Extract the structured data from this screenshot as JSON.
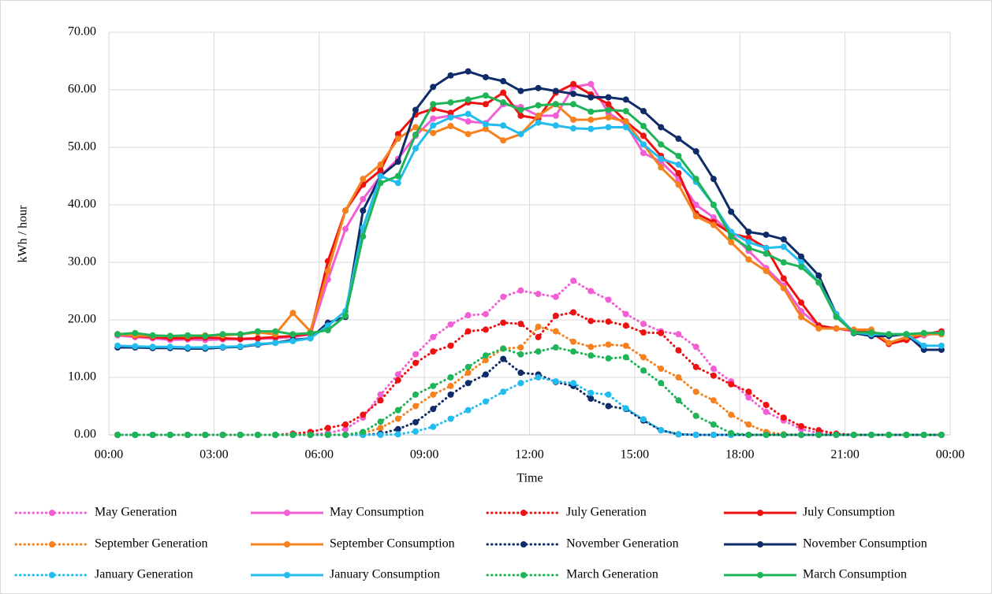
{
  "chart_data": {
    "type": "line",
    "x_label": "Time",
    "y_label": "kWh / hour",
    "xlim": [
      0,
      24
    ],
    "xticks": [
      {
        "value": 0,
        "label": "00:00"
      },
      {
        "value": 3,
        "label": "03:00"
      },
      {
        "value": 6,
        "label": "06:00"
      },
      {
        "value": 9,
        "label": "09:00"
      },
      {
        "value": 12,
        "label": "12:00"
      },
      {
        "value": 15,
        "label": "15:00"
      },
      {
        "value": 18,
        "label": "18:00"
      },
      {
        "value": 21,
        "label": "21:00"
      },
      {
        "value": 24,
        "label": "00:00"
      }
    ],
    "ylim": [
      0,
      70
    ],
    "yticks": [
      {
        "value": 0,
        "label": "0.00"
      },
      {
        "value": 10,
        "label": "10.00"
      },
      {
        "value": 20,
        "label": "20.00"
      },
      {
        "value": 30,
        "label": "30.00"
      },
      {
        "value": 40,
        "label": "40.00"
      },
      {
        "value": 50,
        "label": "50.00"
      },
      {
        "value": 60,
        "label": "60.00"
      },
      {
        "value": 70,
        "label": "70.00"
      }
    ],
    "grid": true,
    "x": [
      0.25,
      0.75,
      1.25,
      1.75,
      2.25,
      2.75,
      3.25,
      3.75,
      4.25,
      4.75,
      5.25,
      5.75,
      6.25,
      6.75,
      7.25,
      7.75,
      8.25,
      8.75,
      9.25,
      9.75,
      10.25,
      10.75,
      11.25,
      11.75,
      12.25,
      12.75,
      13.25,
      13.75,
      14.25,
      14.75,
      15.25,
      15.75,
      16.25,
      16.75,
      17.25,
      17.75,
      18.25,
      18.75,
      19.25,
      19.75,
      20.25,
      20.75,
      21.25,
      21.75,
      22.25,
      22.75,
      23.25,
      23.75
    ],
    "series": [
      {
        "name": "May Generation",
        "color": "#f25fd4",
        "style": "dotted",
        "values": [
          0,
          0,
          0,
          0,
          0,
          0,
          0,
          0,
          0,
          0,
          0,
          0.1,
          0.3,
          1,
          3,
          7,
          10.5,
          14,
          17,
          19.2,
          20.8,
          21,
          24,
          25.1,
          24.5,
          24,
          26.8,
          25,
          23.5,
          21,
          19.3,
          18,
          17.5,
          15.3,
          11.5,
          9.3,
          6.5,
          4,
          2.5,
          1,
          0.3,
          0,
          0,
          0,
          0,
          0,
          0,
          0
        ]
      },
      {
        "name": "May Consumption",
        "color": "#f25fd4",
        "style": "solid",
        "values": [
          17.3,
          17,
          16.8,
          16.5,
          16.6,
          16.5,
          16.6,
          16.6,
          16.7,
          16.8,
          17,
          17.5,
          27,
          35.8,
          41,
          45,
          48,
          52,
          55,
          55.5,
          54.5,
          54.2,
          57.5,
          57,
          55.5,
          55.5,
          60.5,
          61,
          56,
          54,
          49,
          47.5,
          44.5,
          40,
          37.8,
          35,
          32,
          29,
          26,
          21.5,
          19,
          18.5,
          18,
          17.8,
          16,
          16.5,
          17.3,
          17.8
        ]
      },
      {
        "name": "July Generation",
        "color": "#ee1111",
        "style": "dotted",
        "values": [
          0,
          0,
          0,
          0,
          0,
          0,
          0,
          0,
          0,
          0,
          0.2,
          0.5,
          1.2,
          1.8,
          3.5,
          6,
          9.5,
          12.5,
          14.5,
          15.5,
          18,
          18.3,
          19.5,
          19.3,
          17,
          20.7,
          21.3,
          19.8,
          19.7,
          19,
          17.8,
          17.7,
          14.7,
          11.8,
          10.3,
          8.8,
          7.5,
          5.2,
          3,
          1.5,
          0.8,
          0.2,
          0,
          0,
          0,
          0,
          0,
          0
        ]
      },
      {
        "name": "July Consumption",
        "color": "#ee1111",
        "style": "solid",
        "values": [
          17.5,
          17.2,
          17,
          16.8,
          16.8,
          16.9,
          16.8,
          16.7,
          16.8,
          17,
          17.2,
          17.6,
          30.2,
          39,
          43.5,
          46,
          52.3,
          55.7,
          56.7,
          56,
          57.8,
          57.5,
          59.5,
          55.5,
          55,
          59.5,
          61,
          59.2,
          57.5,
          54.5,
          52,
          48.5,
          45.5,
          38.5,
          37,
          35,
          34.3,
          32.5,
          27.2,
          23,
          19,
          18.5,
          18.2,
          17.8,
          15.8,
          16.5,
          17.5,
          18
        ]
      },
      {
        "name": "September Generation",
        "color": "#f5821f",
        "style": "dotted",
        "values": [
          0,
          0,
          0,
          0,
          0,
          0,
          0,
          0,
          0,
          0,
          0,
          0,
          0,
          0,
          0.3,
          1.2,
          2.8,
          5,
          7,
          8.5,
          10.8,
          13,
          15,
          15.2,
          18.8,
          18,
          16.2,
          15.3,
          15.7,
          15.5,
          13.5,
          11.5,
          10,
          7.5,
          6,
          3.5,
          1.8,
          0.5,
          0.1,
          0,
          0,
          0,
          0,
          0,
          0,
          0,
          0,
          0
        ]
      },
      {
        "name": "September Consumption",
        "color": "#f5821f",
        "style": "solid",
        "values": [
          17.5,
          17.3,
          17.2,
          17.2,
          17.2,
          17.3,
          17.3,
          17.5,
          17.8,
          17.5,
          21.2,
          18,
          28.5,
          39,
          44.5,
          47,
          51.5,
          53.5,
          52.5,
          53.7,
          52.3,
          53.2,
          51.2,
          52.3,
          55.5,
          57.5,
          54.8,
          54.8,
          55.2,
          54.5,
          50.5,
          46.5,
          43.5,
          38,
          36.5,
          33.5,
          30.5,
          28.5,
          25.5,
          20.5,
          18.5,
          18.5,
          18.3,
          18.3,
          16,
          17,
          17.5,
          17.5
        ]
      },
      {
        "name": "November Generation",
        "color": "#0f2c68",
        "style": "dotted",
        "values": [
          0,
          0,
          0,
          0,
          0,
          0,
          0,
          0,
          0,
          0,
          0,
          0,
          0,
          0,
          0,
          0.2,
          1,
          2.2,
          4.5,
          7,
          9,
          10.5,
          13.2,
          10.8,
          10.5,
          9.2,
          8.5,
          6.3,
          5,
          4.5,
          2.5,
          0.8,
          0.1,
          0,
          0,
          0,
          0,
          0,
          0,
          0,
          0,
          0,
          0,
          0,
          0,
          0,
          0,
          0
        ]
      },
      {
        "name": "November Consumption",
        "color": "#0f2c68",
        "style": "solid",
        "values": [
          15.2,
          15.2,
          15.1,
          15.1,
          15,
          15,
          15.2,
          15.3,
          15.7,
          16,
          16.5,
          16.8,
          19.5,
          20.5,
          39,
          45,
          47.5,
          56.5,
          60.5,
          62.5,
          63.2,
          62.2,
          61.5,
          59.8,
          60.3,
          59.8,
          59.3,
          58.7,
          58.7,
          58.3,
          56.3,
          53.5,
          51.5,
          49.3,
          44.5,
          38.8,
          35.3,
          34.8,
          34,
          31,
          27.7,
          21,
          17.7,
          17.2,
          17.2,
          17.5,
          14.8,
          14.8
        ]
      },
      {
        "name": "January Generation",
        "color": "#22bdee",
        "style": "dotted",
        "values": [
          0,
          0,
          0,
          0,
          0,
          0,
          0,
          0,
          0,
          0,
          0,
          0,
          0,
          0,
          0,
          0,
          0.1,
          0.6,
          1.4,
          2.8,
          4.3,
          5.8,
          7.5,
          9,
          10,
          9.3,
          9,
          7.3,
          7,
          4.6,
          2.7,
          0.8,
          0.1,
          0,
          0,
          0,
          0,
          0,
          0,
          0,
          0,
          0,
          0,
          0,
          0,
          0,
          0,
          0
        ]
      },
      {
        "name": "January Consumption",
        "color": "#22bdee",
        "style": "solid",
        "values": [
          15.5,
          15.4,
          15.3,
          15.3,
          15.2,
          15.2,
          15.3,
          15.4,
          15.8,
          16,
          16.3,
          16.8,
          19,
          21.5,
          36,
          45,
          43.8,
          49.8,
          53.8,
          55.2,
          55.8,
          54,
          53.8,
          52.3,
          54.3,
          53.8,
          53.3,
          53.2,
          53.5,
          53.5,
          50.5,
          48,
          47,
          44,
          40,
          35.3,
          33.5,
          32.5,
          32.7,
          30,
          26.5,
          21,
          17.8,
          17.5,
          17.5,
          17.5,
          15.5,
          15.5
        ]
      },
      {
        "name": "March Generation",
        "color": "#1fb457",
        "style": "dotted",
        "values": [
          0,
          0,
          0,
          0,
          0,
          0,
          0,
          0,
          0,
          0,
          0,
          0,
          0,
          0,
          0.5,
          2.3,
          4.3,
          7,
          8.5,
          10,
          11.8,
          13.8,
          15,
          14,
          14.5,
          15.2,
          14.5,
          13.8,
          13.3,
          13.5,
          11.2,
          9,
          6,
          3.3,
          1.8,
          0.3,
          0,
          0,
          0,
          0,
          0,
          0,
          0,
          0,
          0,
          0,
          0,
          0
        ]
      },
      {
        "name": "March Consumption",
        "color": "#1fb457",
        "style": "solid",
        "values": [
          17.5,
          17.7,
          17.3,
          17.2,
          17.3,
          17.2,
          17.5,
          17.5,
          18,
          18,
          17.5,
          17.7,
          18.2,
          20.7,
          34.5,
          43.8,
          45,
          52.2,
          57.5,
          57.8,
          58.3,
          59,
          57.8,
          56.5,
          57.3,
          57.5,
          57.5,
          56.2,
          56.5,
          56.3,
          53.7,
          50.5,
          48.5,
          44.5,
          40,
          34.5,
          32.5,
          31.5,
          30,
          29.2,
          26.5,
          20.5,
          17.8,
          17.8,
          17.5,
          17.5,
          17.7,
          17.7
        ]
      }
    ]
  }
}
